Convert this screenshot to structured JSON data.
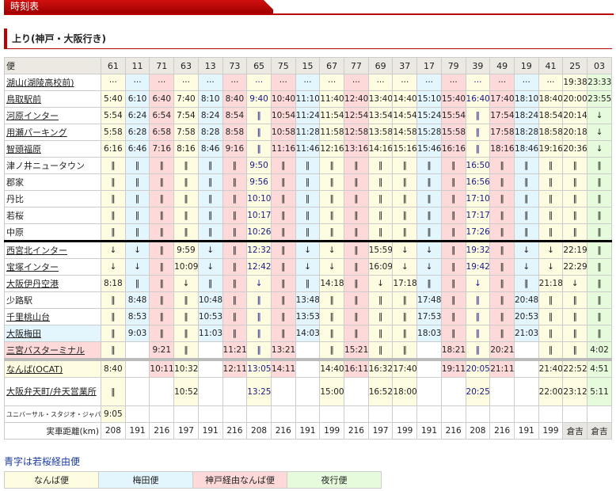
{
  "header": {
    "title": "時刻表",
    "section": "上り(神戸・大阪行き)"
  },
  "colors": {
    "namba": "#fdfbe0",
    "umeda": "#e3f6fd",
    "kobe_namba": "#fdd9d9",
    "night": "#e6fbdc"
  },
  "table": {
    "corner": "便",
    "columns": [
      "61",
      "11",
      "71",
      "63",
      "13",
      "73",
      "65",
      "75",
      "15",
      "67",
      "77",
      "69",
      "37",
      "17",
      "79",
      "39",
      "49",
      "19",
      "41",
      "25",
      "03"
    ],
    "column_types": [
      "y",
      "b",
      "p",
      "y",
      "b",
      "p",
      "y",
      "p",
      "b",
      "y",
      "p",
      "y",
      "y",
      "b",
      "p",
      "y",
      "p",
      "b",
      "y",
      "y",
      "g"
    ],
    "blue_columns": [
      "65",
      "39"
    ],
    "rows": [
      {
        "stop": "湖山(湖陵高校前)",
        "link": true,
        "times": [
          "···",
          "···",
          "···",
          "···",
          "···",
          "···",
          "···",
          "···",
          "···",
          "···",
          "···",
          "···",
          "···",
          "···",
          "···",
          "···",
          "···",
          "···",
          "···",
          "19:38",
          "23:33"
        ]
      },
      {
        "stop": "鳥取駅前",
        "link": true,
        "times": [
          "5:40",
          "6:10",
          "6:40",
          "7:40",
          "8:10",
          "8:40",
          "9:40",
          "10:40",
          "11:10",
          "11:40",
          "12:40",
          "13:40",
          "14:40",
          "15:10",
          "15:40",
          "16:40",
          "17:40",
          "18:10",
          "18:40",
          "20:00",
          "23:55"
        ]
      },
      {
        "stop": "河原インター",
        "link": true,
        "times": [
          "5:54",
          "6:24",
          "6:54",
          "7:54",
          "8:24",
          "8:54",
          "‖",
          "10:54",
          "11:24",
          "11:54",
          "12:54",
          "13:54",
          "14:54",
          "15:24",
          "15:54",
          "‖",
          "17:54",
          "18:24",
          "18:54",
          "20:14",
          "↓"
        ]
      },
      {
        "stop": "用瀬パーキング",
        "link": true,
        "times": [
          "5:58",
          "6:28",
          "6:58",
          "7:58",
          "8:28",
          "8:58",
          "‖",
          "10:58",
          "11:28",
          "11:58",
          "12:58",
          "13:58",
          "14:58",
          "15:28",
          "15:58",
          "‖",
          "17:58",
          "18:28",
          "18:58",
          "20:18",
          "↓"
        ]
      },
      {
        "stop": "智頭福原",
        "link": true,
        "times": [
          "6:16",
          "6:46",
          "7:16",
          "8:16",
          "8:46",
          "9:16",
          "‖",
          "11:16",
          "11:46",
          "12:16",
          "13:16",
          "14:16",
          "15:16",
          "15:46",
          "16:16",
          "‖",
          "18:16",
          "18:46",
          "19:16",
          "20:36",
          "↓"
        ]
      },
      {
        "stop": "津ノ井ニュータウン",
        "link": false,
        "times": [
          "‖",
          "‖",
          "‖",
          "‖",
          "‖",
          "‖",
          "9:50",
          "‖",
          "‖",
          "‖",
          "‖",
          "‖",
          "‖",
          "‖",
          "‖",
          "16:50",
          "‖",
          "‖",
          "‖",
          "‖",
          "‖"
        ]
      },
      {
        "stop": "郡家",
        "link": false,
        "times": [
          "‖",
          "‖",
          "‖",
          "‖",
          "‖",
          "‖",
          "9:56",
          "‖",
          "‖",
          "‖",
          "‖",
          "‖",
          "‖",
          "‖",
          "‖",
          "16:56",
          "‖",
          "‖",
          "‖",
          "‖",
          "‖"
        ]
      },
      {
        "stop": "丹比",
        "link": false,
        "times": [
          "‖",
          "‖",
          "‖",
          "‖",
          "‖",
          "‖",
          "10:10",
          "‖",
          "‖",
          "‖",
          "‖",
          "‖",
          "‖",
          "‖",
          "‖",
          "17:10",
          "‖",
          "‖",
          "‖",
          "‖",
          "‖"
        ]
      },
      {
        "stop": "若桜",
        "link": false,
        "times": [
          "‖",
          "‖",
          "‖",
          "‖",
          "‖",
          "‖",
          "10:17",
          "‖",
          "‖",
          "‖",
          "‖",
          "‖",
          "‖",
          "‖",
          "‖",
          "17:17",
          "‖",
          "‖",
          "‖",
          "‖",
          "‖"
        ]
      },
      {
        "stop": "中原",
        "link": false,
        "sep": "black",
        "times": [
          "‖",
          "‖",
          "‖",
          "‖",
          "‖",
          "‖",
          "10:26",
          "‖",
          "‖",
          "‖",
          "‖",
          "‖",
          "‖",
          "‖",
          "‖",
          "17:26",
          "‖",
          "‖",
          "‖",
          "‖",
          "‖"
        ]
      },
      {
        "stop": "西宮北インター",
        "link": true,
        "times": [
          "↓",
          "↓",
          "‖",
          "9:59",
          "↓",
          "‖",
          "12:32",
          "‖",
          "↓",
          "↓",
          "‖",
          "15:59",
          "↓",
          "↓",
          "‖",
          "19:32",
          "‖",
          "↓",
          "↓",
          "22:19",
          "‖"
        ]
      },
      {
        "stop": "宝塚インター",
        "link": true,
        "times": [
          "↓",
          "↓",
          "‖",
          "10:09",
          "↓",
          "‖",
          "12:42",
          "‖",
          "↓",
          "↓",
          "‖",
          "16:09",
          "↓",
          "↓",
          "‖",
          "19:42",
          "‖",
          "↓",
          "↓",
          "22:29",
          "‖"
        ]
      },
      {
        "stop": "大阪伊丹空港",
        "link": true,
        "times": [
          "8:18",
          "‖",
          "‖",
          "↓",
          "‖",
          "‖",
          "↓",
          "‖",
          "‖",
          "14:18",
          "‖",
          "↓",
          "17:18",
          "‖",
          "‖",
          "↓",
          "‖",
          "‖",
          "21:18",
          "↓",
          "‖"
        ]
      },
      {
        "stop": "少路駅",
        "link": false,
        "times": [
          "‖",
          "8:48",
          "‖",
          "‖",
          "10:48",
          "‖",
          "‖",
          "‖",
          "13:48",
          "‖",
          "‖",
          "‖",
          "‖",
          "17:48",
          "‖",
          "‖",
          "‖",
          "20:48",
          "‖",
          "‖",
          "‖"
        ]
      },
      {
        "stop": "千里桃山台",
        "link": true,
        "times": [
          "‖",
          "8:53",
          "‖",
          "‖",
          "10:53",
          "‖",
          "‖",
          "‖",
          "13:53",
          "‖",
          "‖",
          "‖",
          "‖",
          "17:53",
          "‖",
          "‖",
          "‖",
          "20:53",
          "‖",
          "‖",
          "‖"
        ]
      },
      {
        "stop": "大阪梅田",
        "link": true,
        "label_color": "b",
        "times": [
          "‖",
          "9:03",
          "‖",
          "‖",
          "11:03",
          "‖",
          "‖",
          "‖",
          "14:03",
          "‖",
          "‖",
          "‖",
          "‖",
          "18:03",
          "‖",
          "‖",
          "‖",
          "21:03",
          "‖",
          "‖",
          "‖"
        ]
      },
      {
        "stop": "三宮バスターミナル",
        "link": true,
        "label_color": "p",
        "sep": "gray",
        "times": [
          "‖",
          "",
          "9:21",
          "‖",
          "",
          "11:21",
          "‖",
          "13:21",
          "",
          "‖",
          "15:21",
          "‖",
          "‖",
          "",
          "18:21",
          "‖",
          "20:21",
          "",
          "‖",
          "‖",
          "4:02"
        ]
      },
      {
        "stop": "なんば(OCAT)",
        "link": true,
        "label_color": "y",
        "times": [
          "8:40",
          "",
          "10:11",
          "10:32",
          "",
          "12:11",
          "13:05",
          "14:11",
          "",
          "14:40",
          "16:11",
          "16:32",
          "17:40",
          "",
          "19:11",
          "20:05",
          "21:11",
          "",
          "21:40",
          "22:52",
          "4:51"
        ]
      },
      {
        "stop": "大阪弁天町/弁天営業所",
        "link": true,
        "tall": true,
        "times": [
          "‖",
          "",
          "",
          "10:52",
          "",
          "",
          "13:25",
          "",
          "",
          "15:00",
          "",
          "16:52",
          "18:00",
          "",
          "",
          "20:25",
          "",
          "",
          "22:00",
          "23:12",
          "5:11"
        ]
      },
      {
        "stop": "ユニバーサル・スタジオ・ジャパン",
        "link": false,
        "small": true,
        "times": [
          "9:05",
          "",
          "",
          "",
          "",
          "",
          "",
          "",
          "",
          "",
          "",
          "",
          "",
          "",
          "",
          "",
          "",
          "",
          "",
          "",
          ""
        ]
      }
    ],
    "distance": {
      "label": "実車距離(km)",
      "values": [
        "208",
        "191",
        "216",
        "197",
        "191",
        "216",
        "208",
        "216",
        "191",
        "199",
        "216",
        "197",
        "199",
        "191",
        "216",
        "208",
        "216",
        "191",
        "199",
        "倉吉",
        "倉吉"
      ]
    }
  },
  "note": "青字は若桜経由便",
  "legend": [
    {
      "label": "なんば便",
      "type": "y"
    },
    {
      "label": "梅田便",
      "type": "b"
    },
    {
      "label": "神戸経由なんば便",
      "type": "p"
    },
    {
      "label": "夜行便",
      "type": "g"
    }
  ]
}
